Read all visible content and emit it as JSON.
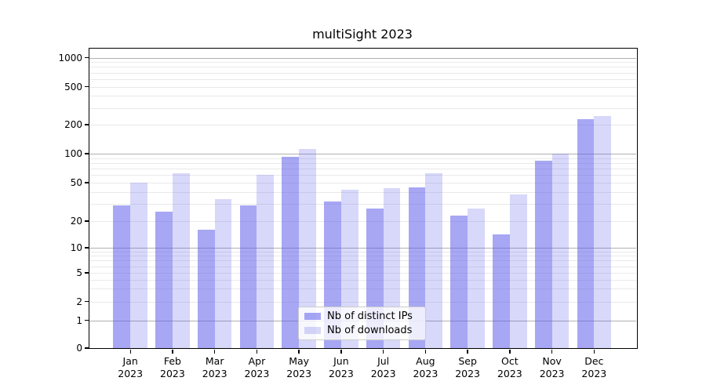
{
  "title": "multiSight 2023",
  "chart_data": {
    "type": "bar",
    "title": "multiSight 2023",
    "categories": [
      "Jan",
      "Feb",
      "Mar",
      "Apr",
      "May",
      "Jun",
      "Jul",
      "Aug",
      "Sep",
      "Oct",
      "Nov",
      "Dec"
    ],
    "category_year": "2023",
    "series": [
      {
        "name": "Nb of distinct IPs",
        "color": "rgba(88,88,235,0.53)",
        "values": [
          29,
          25,
          16,
          29,
          92,
          32,
          27,
          45,
          23,
          14,
          85,
          230
        ]
      },
      {
        "name": "Nb of downloads",
        "color": "rgba(88,88,235,0.23)",
        "values": [
          50,
          63,
          34,
          60,
          112,
          42,
          44,
          63,
          27,
          38,
          100,
          248
        ]
      }
    ],
    "yscale": "symlog",
    "yticks": [
      0,
      1,
      2,
      5,
      10,
      20,
      50,
      100,
      200,
      500,
      1000
    ],
    "major_grid_values": [
      1,
      10,
      100,
      1000
    ],
    "minor_grid_values": [
      2,
      3,
      4,
      5,
      6,
      7,
      8,
      9,
      20,
      30,
      40,
      50,
      60,
      70,
      80,
      90,
      200,
      300,
      400,
      500,
      600,
      700,
      800,
      900
    ],
    "ylim": [
      0,
      1265
    ],
    "grid": true,
    "legend_position": "lower center inside"
  },
  "colors": {
    "background": "#ffffff",
    "axis": "#000000",
    "major_grid": "#b0b0b0",
    "minor_grid": "#e9e9e9",
    "legend_border": "#cccccc",
    "text": "#000000"
  }
}
